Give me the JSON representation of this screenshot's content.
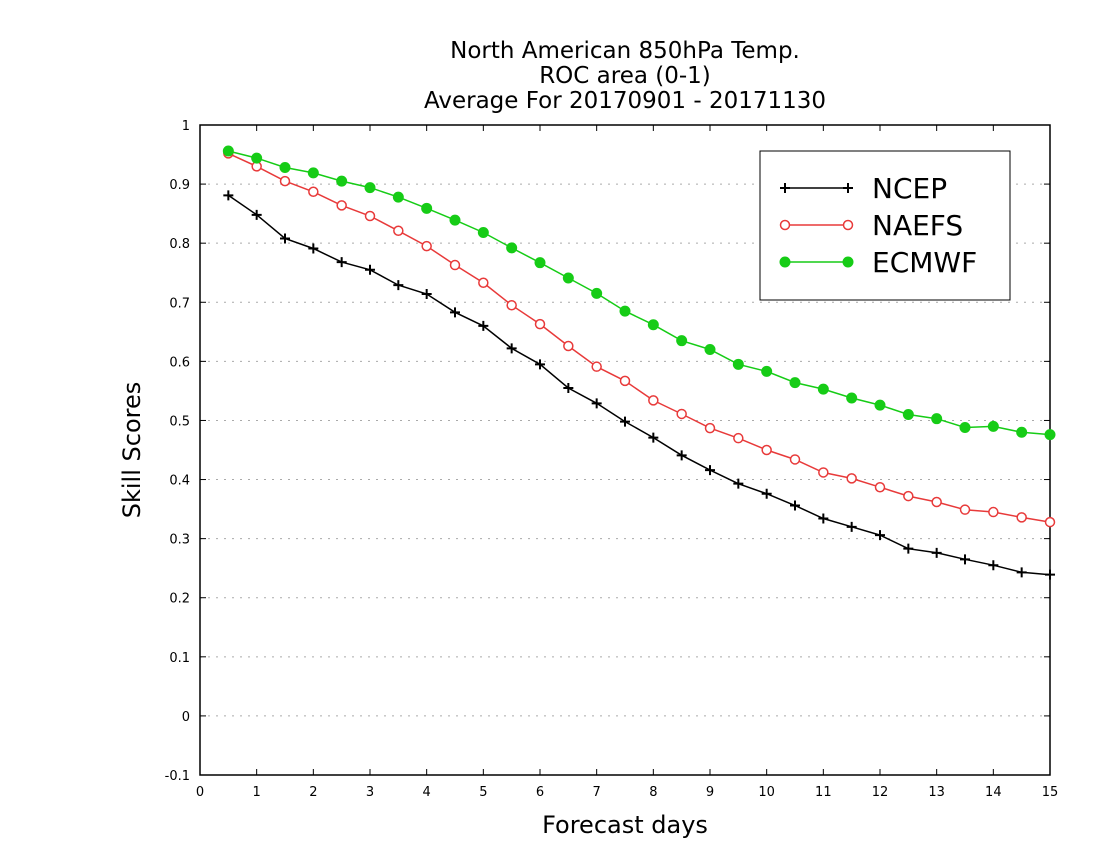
{
  "chart_data": {
    "type": "line",
    "title": [
      "North American 850hPa Temp.",
      "ROC area (0-1)",
      "Average For 20170901 - 20171130"
    ],
    "xlabel": "Forecast days",
    "ylabel": "Skill Scores",
    "xlim": [
      0,
      15
    ],
    "ylim": [
      -0.1,
      1
    ],
    "x_ticks": [
      0,
      1,
      2,
      3,
      4,
      5,
      6,
      7,
      8,
      9,
      10,
      11,
      12,
      13,
      14,
      15
    ],
    "x_tick_labels": [
      "0",
      "1",
      "2",
      "3",
      "4",
      "5",
      "6",
      "7",
      "8",
      "9",
      "10",
      "11",
      "12",
      "13",
      "14",
      "15"
    ],
    "y_ticks": [
      -0.1,
      0,
      0.1,
      0.2,
      0.3,
      0.4,
      0.5,
      0.6,
      0.7,
      0.8,
      0.9,
      1
    ],
    "y_tick_labels": [
      "-0.1",
      "0",
      "0.1",
      "0.2",
      "0.3",
      "0.4",
      "0.5",
      "0.6",
      "0.7",
      "0.8",
      "0.9",
      "1"
    ],
    "grid": "horizontal-dotted",
    "legend_position": "top-right",
    "x": [
      0.5,
      1,
      1.5,
      2,
      2.5,
      3,
      3.5,
      4,
      4.5,
      5,
      5.5,
      6,
      6.5,
      7,
      7.5,
      8,
      8.5,
      9,
      9.5,
      10,
      10.5,
      11,
      11.5,
      12,
      12.5,
      13,
      13.5,
      14,
      14.5,
      15
    ],
    "series": [
      {
        "name": "NCEP",
        "color": "#000000",
        "marker": "plus",
        "values": [
          0.881,
          0.848,
          0.808,
          0.791,
          0.768,
          0.755,
          0.729,
          0.714,
          0.683,
          0.66,
          0.622,
          0.595,
          0.555,
          0.529,
          0.498,
          0.471,
          0.441,
          0.416,
          0.393,
          0.376,
          0.356,
          0.334,
          0.32,
          0.306,
          0.283,
          0.276,
          0.265,
          0.255,
          0.243,
          0.239
        ]
      },
      {
        "name": "NAEFS",
        "color": "#e83a3a",
        "marker": "open-circle",
        "values": [
          0.952,
          0.93,
          0.905,
          0.887,
          0.864,
          0.846,
          0.821,
          0.795,
          0.763,
          0.733,
          0.695,
          0.663,
          0.626,
          0.591,
          0.567,
          0.534,
          0.511,
          0.487,
          0.47,
          0.45,
          0.434,
          0.412,
          0.402,
          0.387,
          0.372,
          0.362,
          0.349,
          0.345,
          0.336,
          0.328
        ]
      },
      {
        "name": "ECMWF",
        "color": "#16cc16",
        "marker": "filled-circle",
        "values": [
          0.956,
          0.944,
          0.928,
          0.919,
          0.905,
          0.894,
          0.878,
          0.859,
          0.839,
          0.818,
          0.792,
          0.767,
          0.741,
          0.715,
          0.685,
          0.662,
          0.635,
          0.62,
          0.595,
          0.583,
          0.564,
          0.553,
          0.538,
          0.526,
          0.51,
          0.503,
          0.488,
          0.49,
          0.48,
          0.476
        ]
      }
    ]
  }
}
